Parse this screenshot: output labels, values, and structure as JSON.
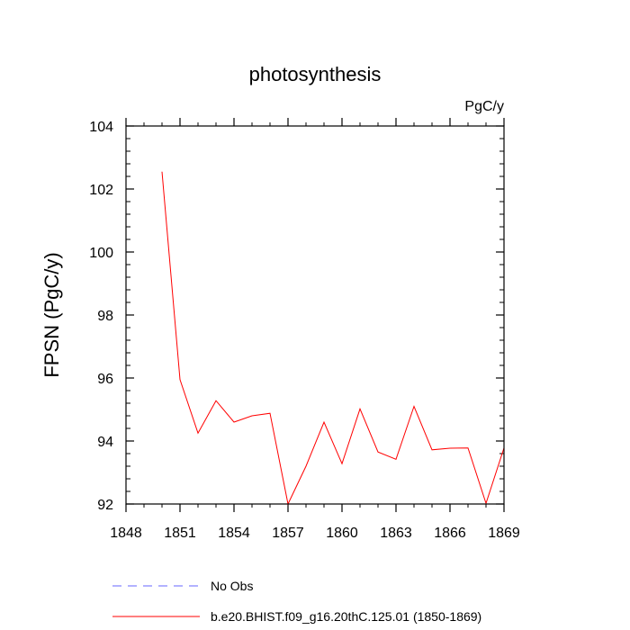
{
  "chart_data": {
    "type": "line",
    "title": "photosynthesis",
    "units": "PgC/y",
    "ylabel": "FPSN  (PgC/y)",
    "xlabel": "",
    "xlim": [
      1848,
      1869
    ],
    "ylim": [
      92,
      104
    ],
    "x_ticks": [
      1848,
      1851,
      1854,
      1857,
      1860,
      1863,
      1866,
      1869
    ],
    "y_ticks": [
      92,
      94,
      96,
      98,
      100,
      102,
      104
    ],
    "series": [
      {
        "name": "b.e20.BHIST.f09_g16.20thC.125.01 (1850-1869)",
        "color": "#ff0000",
        "style": "solid",
        "x": [
          1850,
          1851,
          1852,
          1853,
          1854,
          1855,
          1856,
          1857,
          1858,
          1859,
          1860,
          1861,
          1862,
          1863,
          1864,
          1865,
          1866,
          1867,
          1868,
          1869
        ],
        "y": [
          102.55,
          95.95,
          94.25,
          95.28,
          94.6,
          94.8,
          94.88,
          92.0,
          93.2,
          94.6,
          93.28,
          95.02,
          93.65,
          93.42,
          95.1,
          93.72,
          93.77,
          93.78,
          92.02,
          93.78
        ]
      }
    ],
    "legend": {
      "placement": "bottom",
      "entries": [
        {
          "label": "No Obs",
          "color": "#6666ff",
          "style": "dashed"
        },
        {
          "label": "b.e20.BHIST.f09_g16.20thC.125.01 (1850-1869)",
          "color": "#ff0000",
          "style": "solid"
        }
      ]
    }
  }
}
